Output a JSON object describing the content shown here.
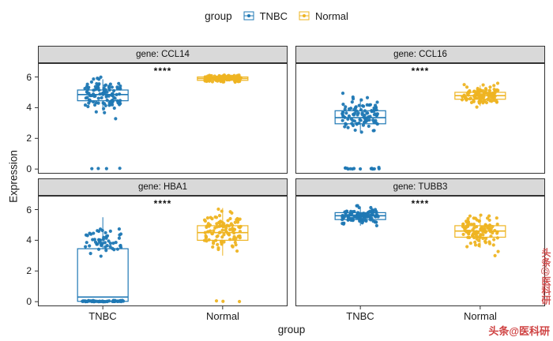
{
  "legend": {
    "title": "group",
    "items": [
      {
        "label": "TNBC",
        "color": "#1f78b4"
      },
      {
        "label": "Normal",
        "color": "#eeb422"
      }
    ]
  },
  "axes": {
    "y_label": "Expression",
    "x_label": "group",
    "x_categories": [
      "TNBC",
      "Normal"
    ],
    "y_ticks": [
      0,
      2,
      4,
      6
    ],
    "y_range": [
      -0.3,
      6.9
    ]
  },
  "watermark": {
    "text": "头条@医科研",
    "color": "#cc3333"
  },
  "chart_data": {
    "type": "boxplot-jitter",
    "facet_by": "gene",
    "grid": "2x2",
    "panel_background": "#ffffff",
    "strip_background": "#d9d9d9",
    "facets": [
      {
        "gene": "CCL14",
        "strip": "gene: CCL14",
        "significance": "****",
        "groups": [
          {
            "name": "TNBC",
            "color": "#1f78b4",
            "box": {
              "low": 3.8,
              "q1": 4.45,
              "median": 4.85,
              "q3": 5.15,
              "high": 5.85
            },
            "points": {
              "n": 105,
              "mean": 4.8,
              "sd": 0.55,
              "min": 2.7,
              "max": 6.0,
              "zeros": 4
            }
          },
          {
            "name": "Normal",
            "color": "#eeb422",
            "box": {
              "low": 5.6,
              "q1": 5.78,
              "median": 5.9,
              "q3": 6.0,
              "high": 6.15
            },
            "points": {
              "n": 110,
              "mean": 5.9,
              "sd": 0.13,
              "min": 5.5,
              "max": 6.2,
              "zeros": 0
            }
          }
        ]
      },
      {
        "gene": "CCL16",
        "strip": "gene: CCL16",
        "significance": "****",
        "groups": [
          {
            "name": "TNBC",
            "color": "#1f78b4",
            "box": {
              "low": 2.45,
              "q1": 2.95,
              "median": 3.35,
              "q3": 3.8,
              "high": 4.6
            },
            "points": {
              "n": 95,
              "mean": 3.5,
              "sd": 0.55,
              "min": 2.4,
              "max": 5.0,
              "zeros": 14
            }
          },
          {
            "name": "Normal",
            "color": "#eeb422",
            "box": {
              "low": 4.1,
              "q1": 4.55,
              "median": 4.78,
              "q3": 5.0,
              "high": 5.45
            },
            "points": {
              "n": 110,
              "mean": 4.8,
              "sd": 0.3,
              "min": 3.9,
              "max": 5.6,
              "zeros": 0
            }
          }
        ]
      },
      {
        "gene": "HBA1",
        "strip": "gene: HBA1",
        "significance": "****",
        "groups": [
          {
            "name": "TNBC",
            "color": "#1f78b4",
            "box": {
              "low": 0.0,
              "q1": 0.02,
              "median": 0.3,
              "q3": 3.45,
              "high": 5.5
            },
            "points": {
              "n": 55,
              "mean": 3.8,
              "sd": 0.5,
              "min": 2.9,
              "max": 5.3,
              "zeros": 60
            }
          },
          {
            "name": "Normal",
            "color": "#eeb422",
            "box": {
              "low": 3.0,
              "q1": 4.0,
              "median": 4.5,
              "q3": 4.95,
              "high": 6.1
            },
            "points": {
              "n": 105,
              "mean": 4.5,
              "sd": 0.6,
              "min": 2.9,
              "max": 6.2,
              "zeros": 3
            }
          }
        ]
      },
      {
        "gene": "TUBB3",
        "strip": "gene: TUBB3",
        "significance": "****",
        "groups": [
          {
            "name": "TNBC",
            "color": "#1f78b4",
            "box": {
              "low": 4.95,
              "q1": 5.35,
              "median": 5.6,
              "q3": 5.8,
              "high": 6.2
            },
            "points": {
              "n": 110,
              "mean": 5.6,
              "sd": 0.25,
              "min": 4.9,
              "max": 6.3,
              "zeros": 0
            }
          },
          {
            "name": "Normal",
            "color": "#eeb422",
            "box": {
              "low": 3.5,
              "q1": 4.2,
              "median": 4.6,
              "q3": 4.95,
              "high": 5.6
            },
            "points": {
              "n": 105,
              "mean": 4.6,
              "sd": 0.5,
              "min": 2.4,
              "max": 5.7,
              "zeros": 0
            }
          }
        ]
      }
    ]
  }
}
